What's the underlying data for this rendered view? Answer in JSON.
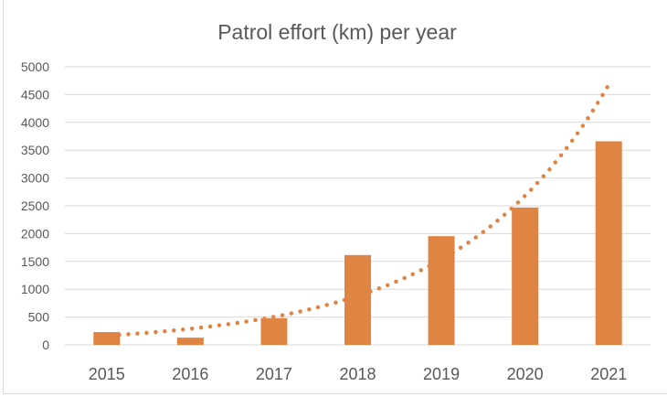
{
  "chart_data": {
    "type": "bar",
    "title": "Patrol effort (km) per year",
    "xlabel": "",
    "ylabel": "",
    "categories": [
      "2015",
      "2016",
      "2017",
      "2018",
      "2019",
      "2020",
      "2021"
    ],
    "values": [
      230,
      130,
      480,
      1615,
      1955,
      2470,
      3660
    ],
    "ylim": [
      0,
      5000
    ],
    "yticks": [
      0,
      500,
      1000,
      1500,
      2000,
      2500,
      3000,
      3500,
      4000,
      4500,
      5000
    ],
    "grid": true,
    "legend": "none",
    "trendline": {
      "type": "exponential",
      "style": "dotted"
    },
    "colors": {
      "bar": "#E08444",
      "trendline": "#E08444",
      "grid": "#d9d9d9",
      "text": "#595959"
    }
  }
}
